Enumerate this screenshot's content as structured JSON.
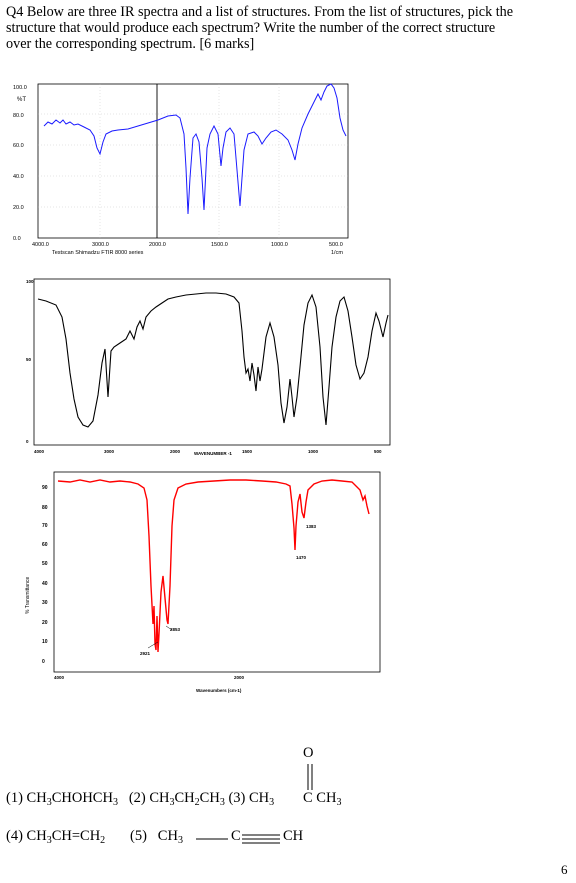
{
  "question": {
    "line1": "Q4 Below are three IR spectra and a list of structures. From the list of structures, pick the",
    "line2": "structure that would produce each spectrum? Write the number of the correct structure",
    "line3": "over the corresponding spectrum. [6 marks]"
  },
  "spectrum1": {
    "ylabel": "%T",
    "yticks": [
      "100.0",
      "80.0",
      "60.0",
      "40.0",
      "20.0",
      "0.0"
    ],
    "xticks": [
      "4000.0",
      "3000.0",
      "2000.0",
      "1500.0",
      "1000.0",
      "500.0"
    ],
    "xunit": "1/cm",
    "instrument": "Testscan Shimadzu FTIR 8000 series",
    "color": "#1a1aff"
  },
  "spectrum2": {
    "yticks": [
      "100",
      "50",
      "0"
    ],
    "xticks": [
      "4000",
      "3000",
      "2000",
      "1500",
      "1000",
      "500"
    ],
    "xlabel": "WAVENUMBER -1",
    "color": "#000000"
  },
  "spectrum3": {
    "ylabel": "% Transmittance",
    "yticks": [
      "90",
      "80",
      "70",
      "60",
      "50",
      "40",
      "30",
      "20",
      "10",
      "0"
    ],
    "xticks": [
      "4000",
      "2000"
    ],
    "xlabel": "Wavenumbers (cm-1)",
    "peak_labels": [
      "1383",
      "1470",
      "2853",
      "2921"
    ],
    "color": "#ff0000"
  },
  "structures": {
    "s1_num": "(1)",
    "s1_a": "CH",
    "s1_b": "3",
    "s1_c": "CHOHCH",
    "s1_d": "3",
    "s2_num": "(2)",
    "s2_a": "CH",
    "s2_b": "3",
    "s2_c": "CH",
    "s2_d": "2",
    "s2_e": "CH",
    "s2_f": "3",
    "s3_num": "(3)",
    "s3_a": "CH",
    "s3_b": "3",
    "s3_c": "C",
    "s3_d": "CH",
    "s3_e": "3",
    "s3_o": "O",
    "s4_num": "(4)",
    "s4_a": "CH",
    "s4_b": "3",
    "s4_c": "CH=CH",
    "s4_d": "2",
    "s5_num": "(5)",
    "s5_a": "CH",
    "s5_b": "3",
    "s5_c": "C",
    "s5_d": "CH"
  },
  "page_number": "6"
}
